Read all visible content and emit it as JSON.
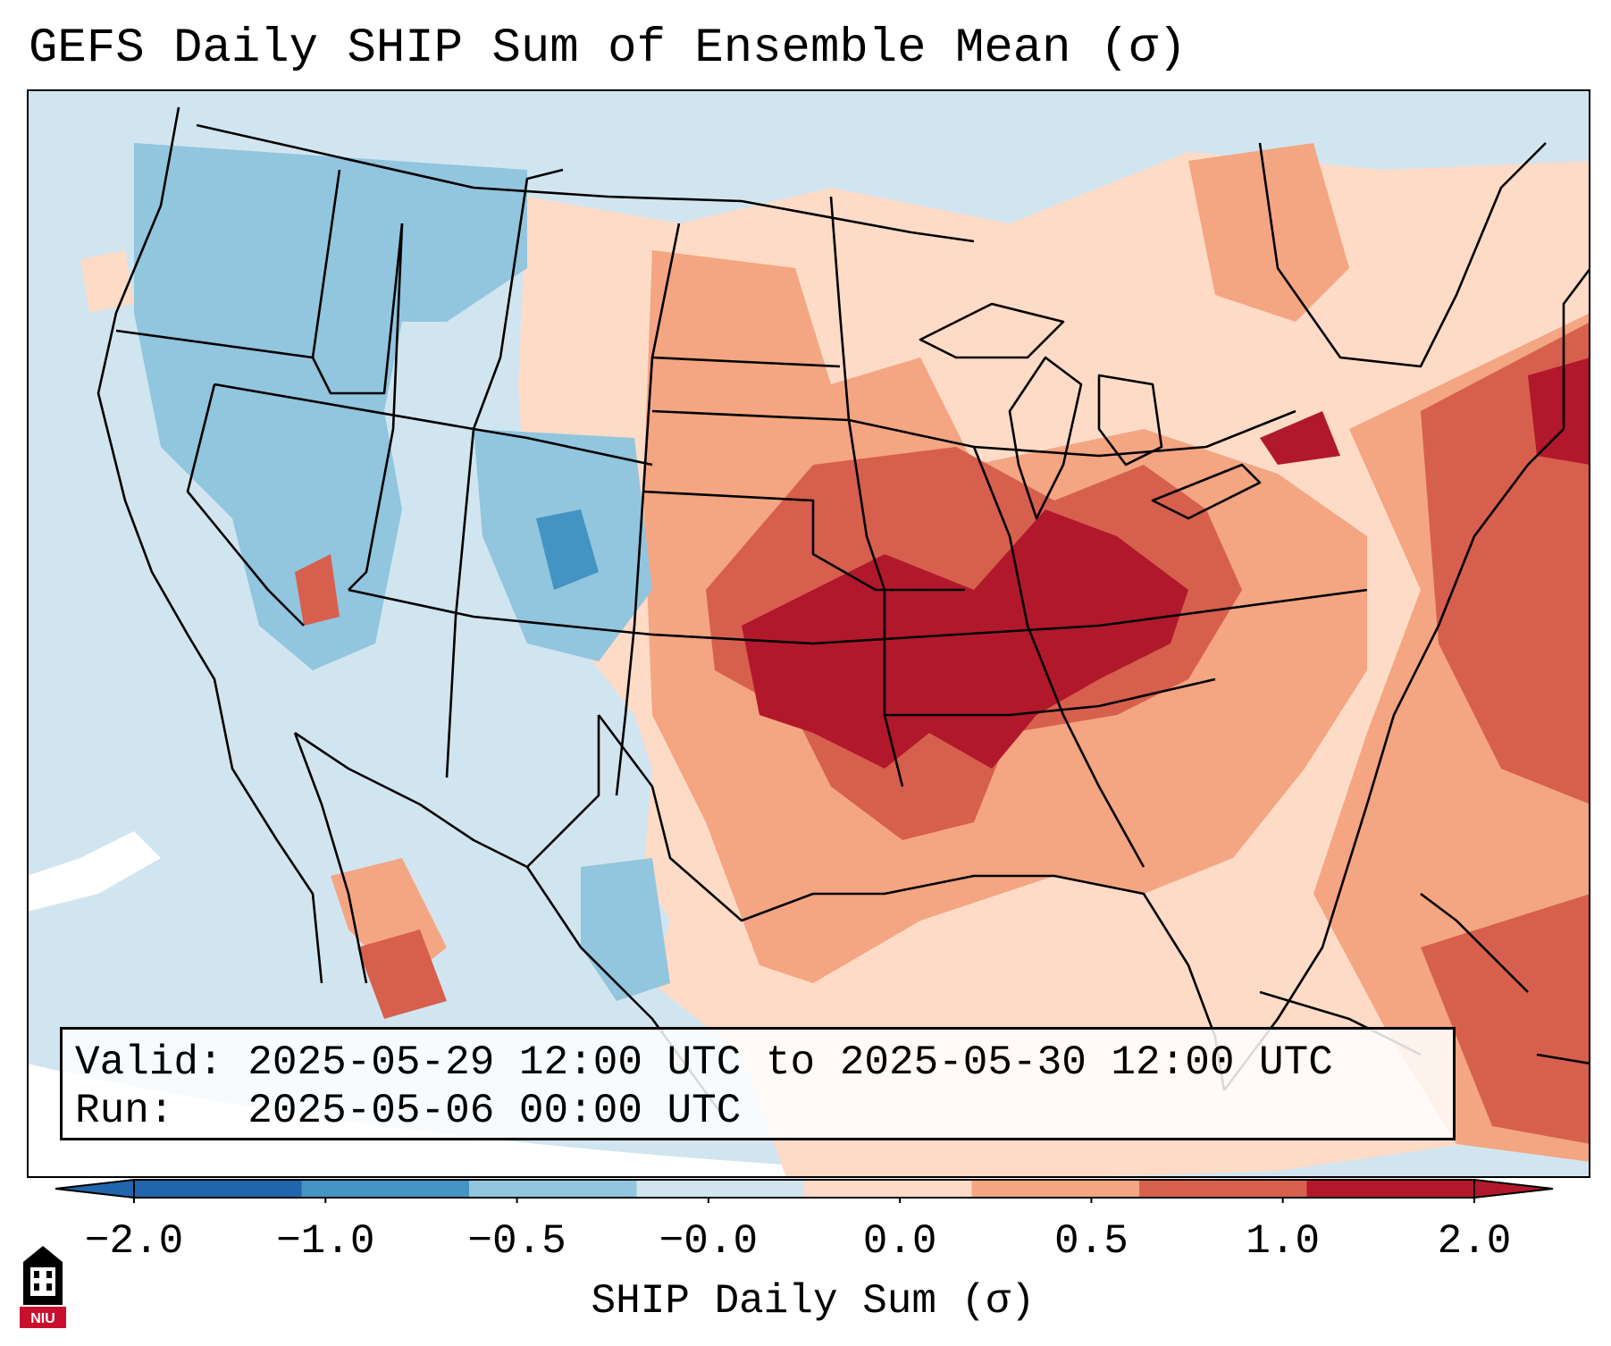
{
  "title": "GEFS Daily SHIP Sum of Ensemble Mean (σ)",
  "info": {
    "valid_label": "Valid:",
    "valid_value": "2025-05-29 12:00 UTC to 2025-05-30 12:00 UTC",
    "run_label": "Run:",
    "run_value": "2025-05-06 00:00 UTC"
  },
  "colorbar": {
    "label": "SHIP Daily Sum (σ)",
    "ticks": [
      "−2.0",
      "−1.0",
      "−0.5",
      "−0.0",
      "0.0",
      "0.5",
      "1.0",
      "2.0"
    ],
    "colors": [
      "#2166ac",
      "#4393c3",
      "#92c5de",
      "#d1e5f0",
      "#fddbc7",
      "#f4a582",
      "#d6604d",
      "#b2182b"
    ],
    "extend": "both"
  },
  "logo": {
    "text": "NIU",
    "icon": "niu-logo-icon"
  },
  "map": {
    "region": "Continental United States",
    "colors": {
      "ocean": "#d1e5f0",
      "border": "#000000",
      "outside": "#ffffff"
    }
  }
}
